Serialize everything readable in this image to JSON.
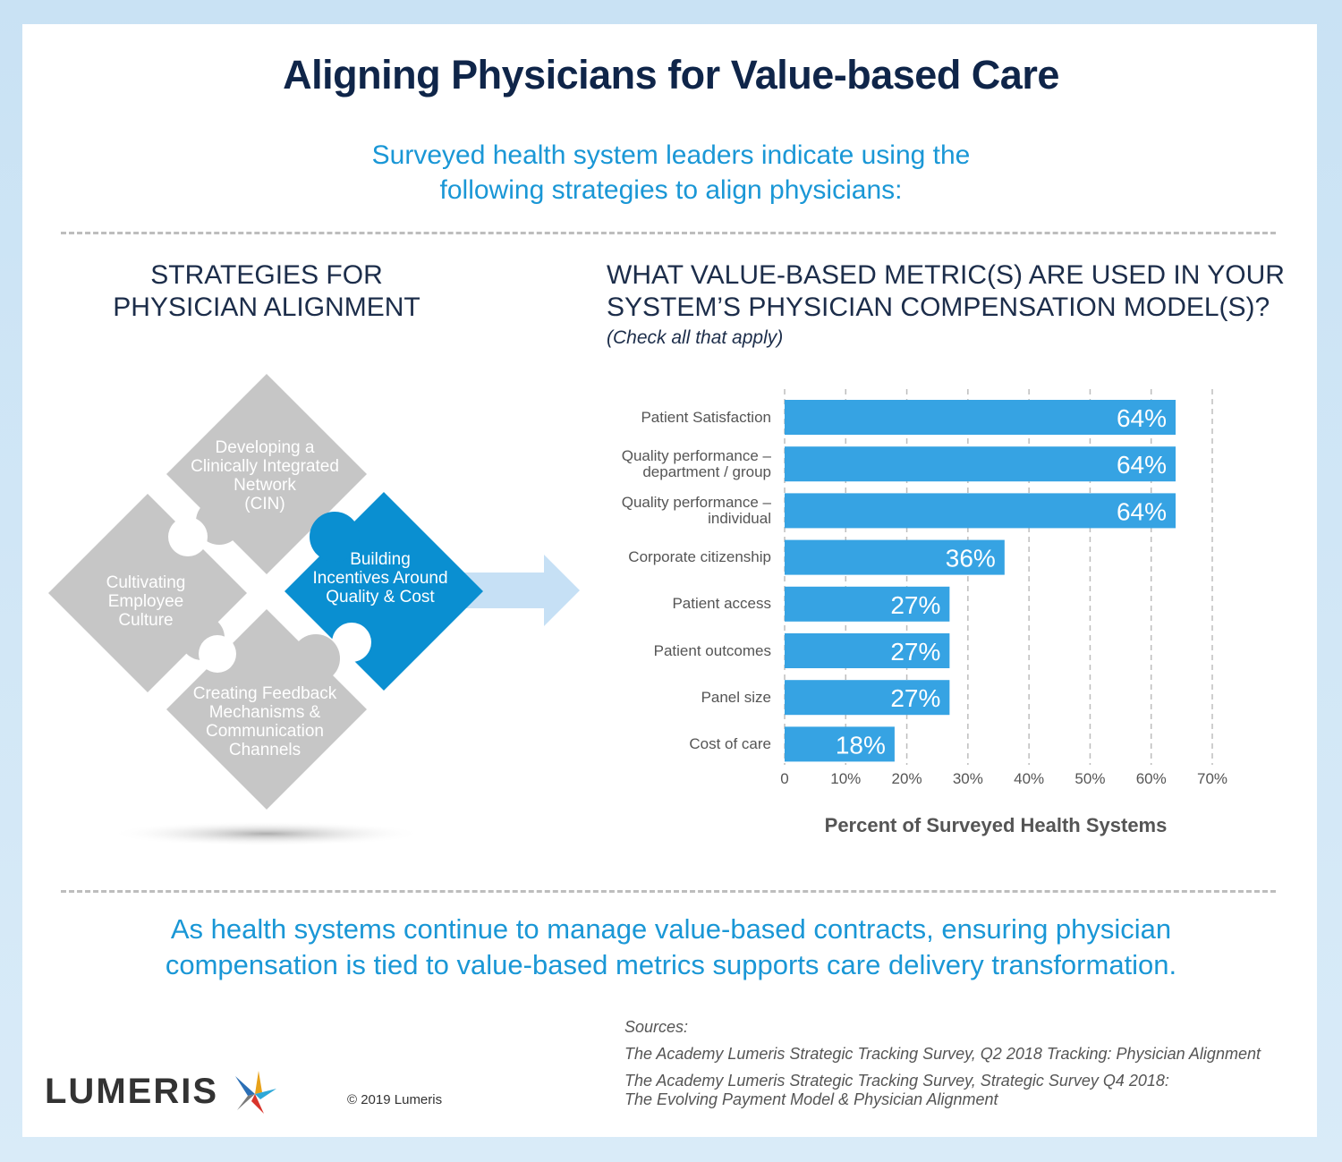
{
  "title": "Aligning Physicians for Value-based Care",
  "subtitle_line1": "Surveyed health system leaders indicate using the",
  "subtitle_line2": "following strategies to align physicians:",
  "left_section": {
    "heading_line1": "STRATEGIES FOR",
    "heading_line2": "PHYSICIAN ALIGNMENT",
    "pieces": {
      "top": [
        "Developing a",
        "Clinically Integrated",
        "Network",
        "(CIN)"
      ],
      "left": [
        "Cultivating",
        "Employee",
        "Culture"
      ],
      "right": [
        "Building",
        "Incentives Around",
        "Quality & Cost"
      ],
      "bottom": [
        "Creating Feedback",
        "Mechanisms &",
        "Communication",
        "Channels"
      ]
    },
    "colors": {
      "gray": "#c6c6c6",
      "blue": "#0a8fd1",
      "arrow": "#c6e0f5"
    }
  },
  "right_section": {
    "heading_line1": "WHAT VALUE-BASED METRIC(S) ARE USED IN YOUR",
    "heading_line2": "SYSTEM’S PHYSICIAN COMPENSATION MODEL(S)?",
    "note": "(Check all that apply)"
  },
  "chart_data": {
    "type": "bar",
    "orientation": "horizontal",
    "categories": [
      [
        "Patient Satisfaction"
      ],
      [
        "Quality performance –",
        "department / group"
      ],
      [
        "Quality performance –",
        "individual"
      ],
      [
        "Corporate citizenship"
      ],
      [
        "Patient access"
      ],
      [
        "Patient outcomes"
      ],
      [
        "Panel size"
      ],
      [
        "Cost of care"
      ]
    ],
    "values": [
      64,
      64,
      64,
      36,
      27,
      27,
      27,
      18
    ],
    "value_labels": [
      "64%",
      "64%",
      "64%",
      "36%",
      "27%",
      "27%",
      "27%",
      "18%"
    ],
    "xlim": [
      0,
      70
    ],
    "xticks": [
      "0",
      "10%",
      "20%",
      "30%",
      "40%",
      "50%",
      "60%",
      "70%"
    ],
    "xlabel": "Percent of Surveyed Health Systems",
    "grid": true,
    "bar_color": "#36a3e3"
  },
  "closing_line1": "As health systems continue to manage value-based contracts, ensuring physician",
  "closing_line2": "compensation is tied to value-based metrics supports care delivery transformation.",
  "sources": {
    "label": "Sources:",
    "line1": "The Academy Lumeris Strategic Tracking Survey, Q2 2018 Tracking: Physician Alignment",
    "line2": "The Academy Lumeris Strategic Tracking Survey, Strategic Survey Q4 2018:",
    "line3": "The Evolving Payment Model & Physician Alignment"
  },
  "logo_text": "LUMERIS",
  "copyright": "© 2019 Lumeris"
}
